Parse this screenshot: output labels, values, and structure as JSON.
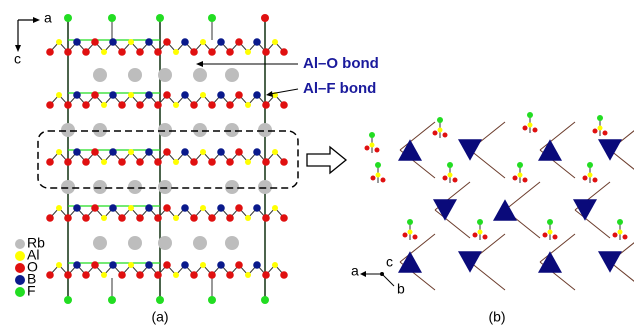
{
  "panel_a": {
    "axes": {
      "horizontal": "a",
      "vertical": "c"
    },
    "annotations": [
      "Al–O bond",
      "Al–F bond"
    ],
    "legend": [
      "Rb",
      "Al",
      "O",
      "B",
      "F"
    ],
    "caption": "(a)"
  },
  "panel_b": {
    "axes": {
      "left": "a",
      "up": "c",
      "down": "b"
    },
    "caption": "(b)"
  }
}
